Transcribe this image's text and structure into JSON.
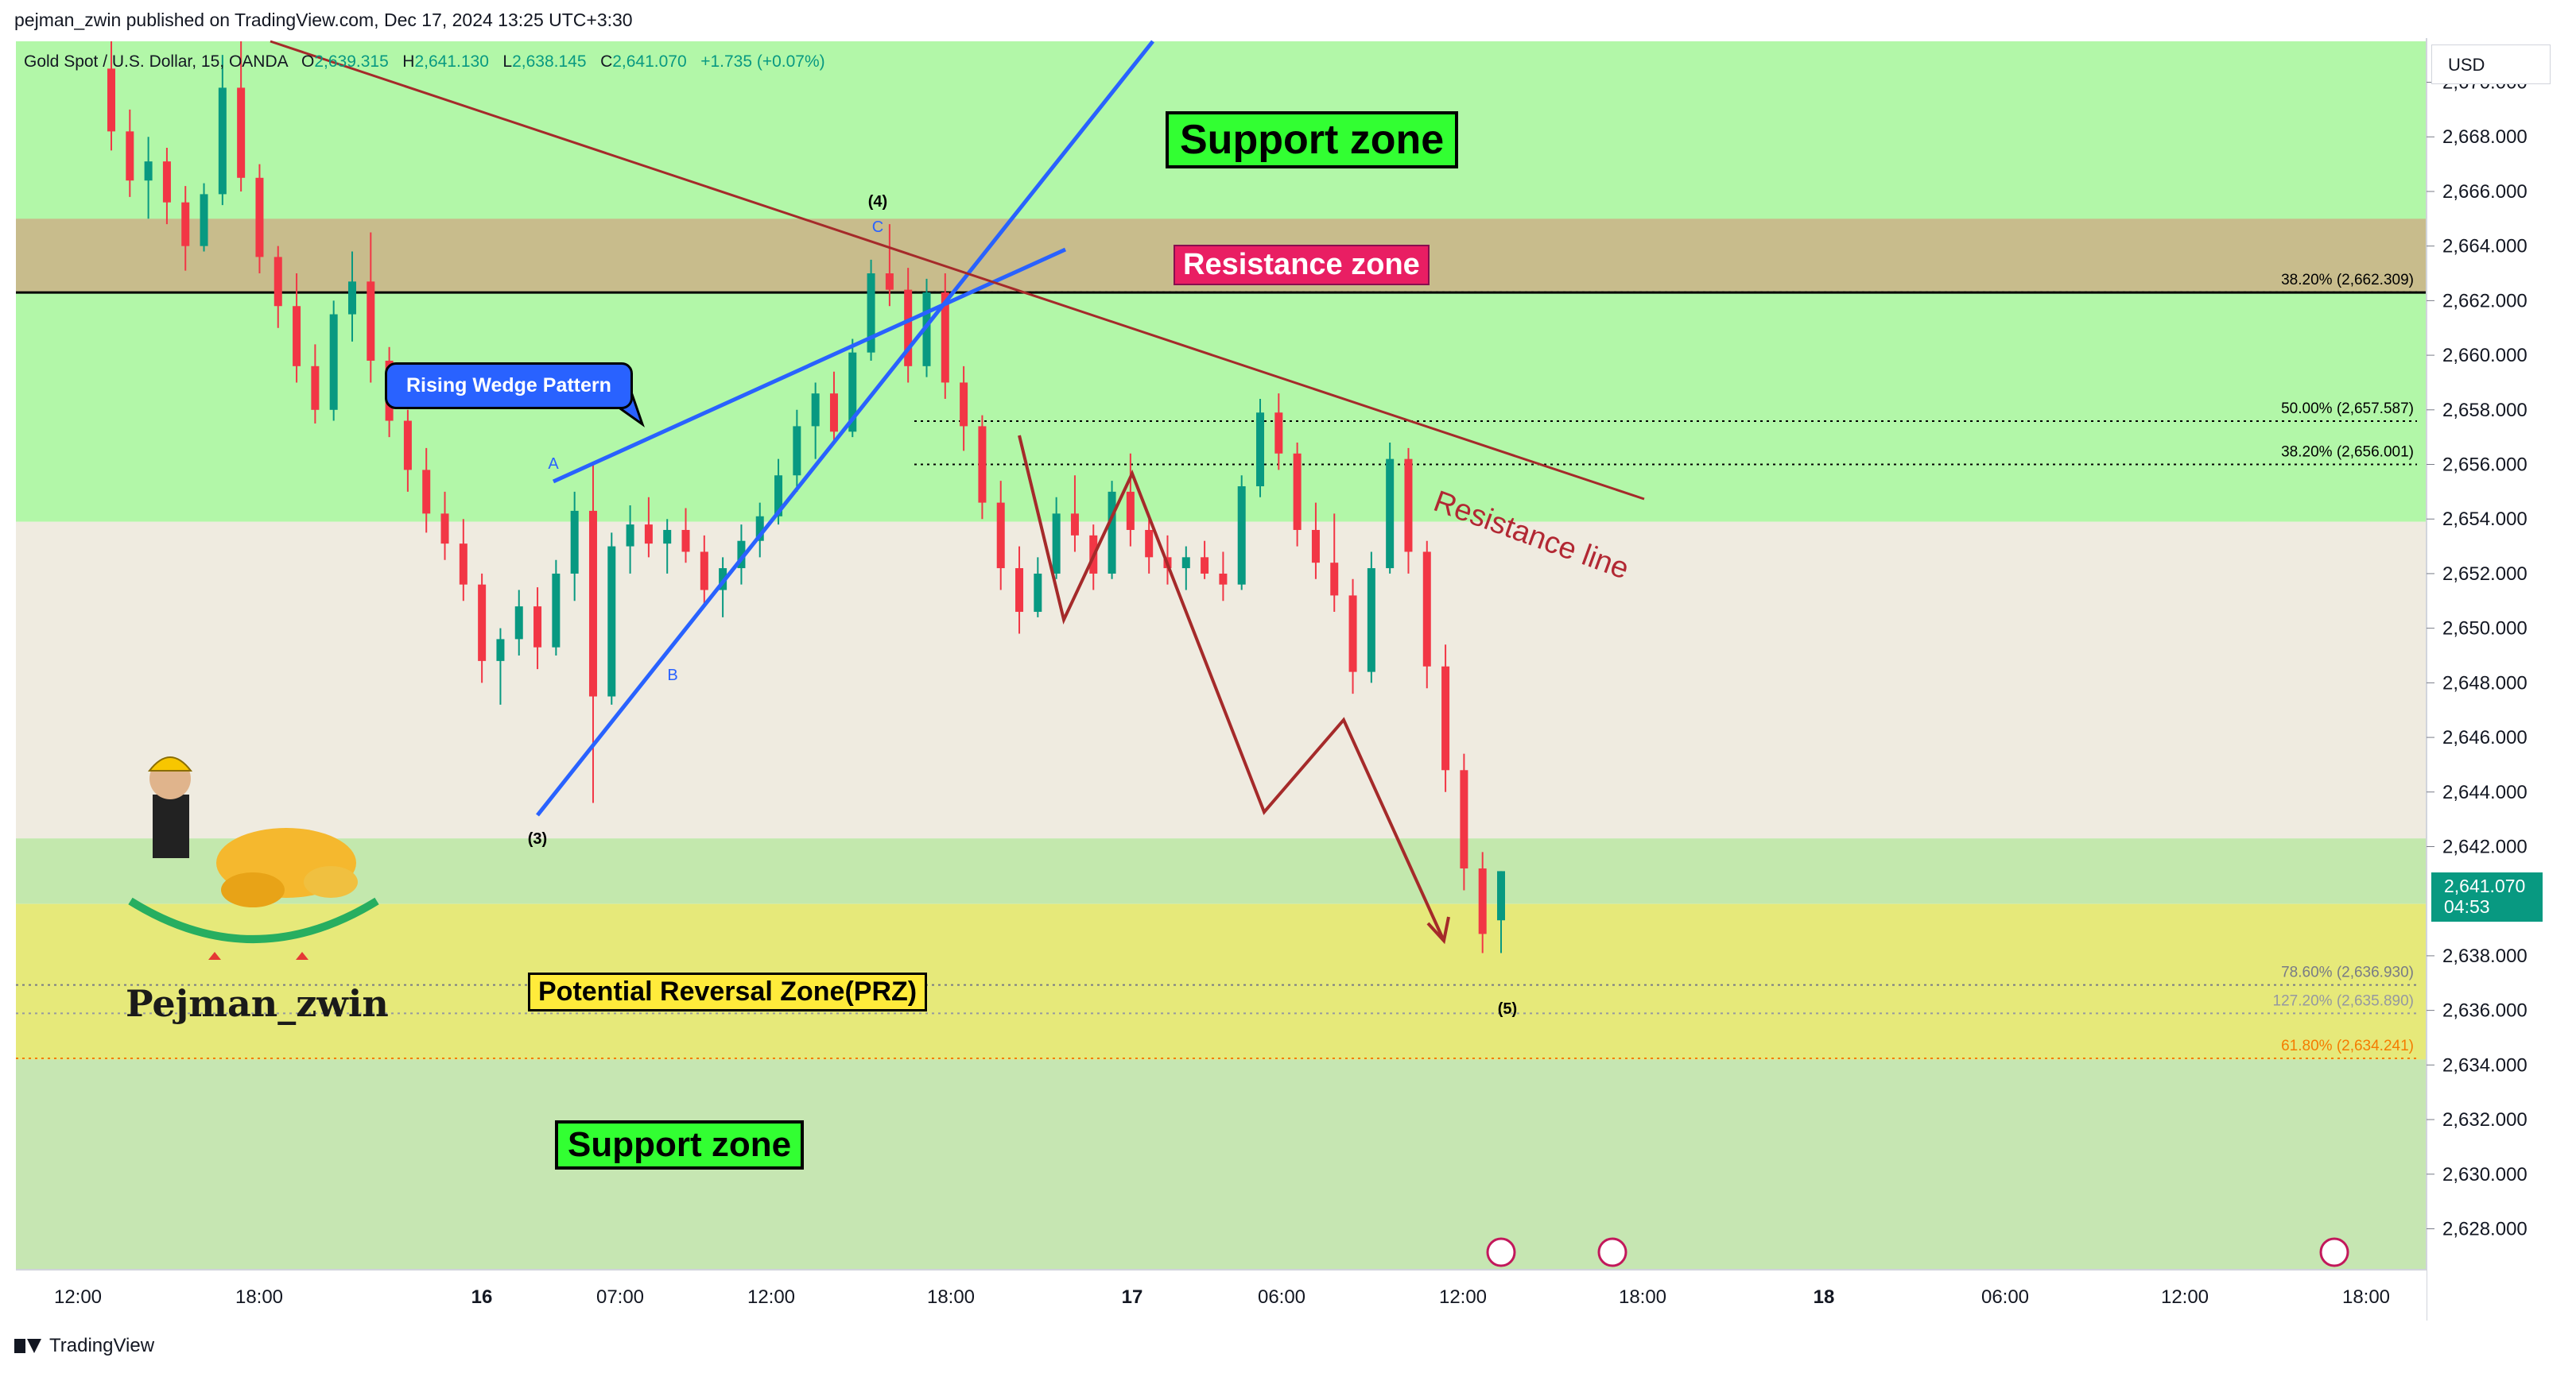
{
  "header": {
    "published_by": "pejman_zwin published on TradingView.com, Dec 17, 2024 13:25 UTC+3:30"
  },
  "legend": {
    "symbol": "Gold Spot / U.S. Dollar, 15, OANDA",
    "o_label": "O",
    "open": "2,639.315",
    "h_label": "H",
    "high": "2,641.130",
    "l_label": "L",
    "low": "2,638.145",
    "c_label": "C",
    "close": "2,641.070",
    "change": "+1.735 (+0.07%)"
  },
  "price_scale": {
    "currency": "USD",
    "current_price": "2,641.070",
    "countdown": "04:53",
    "ticks": [
      "2,670.000",
      "2,668.000",
      "2,666.000",
      "2,664.000",
      "2,662.000",
      "2,660.000",
      "2,658.000",
      "2,656.000",
      "2,654.000",
      "2,652.000",
      "2,650.000",
      "2,648.000",
      "2,646.000",
      "2,644.000",
      "2,642.000",
      "2,638.000",
      "2,636.000",
      "2,634.000",
      "2,632.000",
      "2,630.000",
      "2,628.000"
    ]
  },
  "time_axis": {
    "ticks": [
      {
        "label": "12:00"
      },
      {
        "label": "18:00"
      },
      {
        "label": "16"
      },
      {
        "label": "07:00"
      },
      {
        "label": "12:00"
      },
      {
        "label": "18:00"
      },
      {
        "label": "17"
      },
      {
        "label": "06:00"
      },
      {
        "label": "12:00"
      },
      {
        "label": "18:00"
      },
      {
        "label": "18"
      },
      {
        "label": "06:00"
      },
      {
        "label": "12:00"
      },
      {
        "label": "18:00"
      }
    ]
  },
  "annotations": {
    "support_top": "Support zone",
    "support_bottom": "Support zone",
    "resistance_zone": "Resistance zone",
    "prz": "Potential Reversal Zone(PRZ)",
    "rising_wedge": "Rising Wedge Pattern",
    "resistance_line": "Resistance line",
    "brand": "Pejman_zwin",
    "wave_3": "(3)",
    "wave_4": "(4)",
    "wave_5": "(5)",
    "point_a": "A",
    "point_b": "B",
    "point_c": "C"
  },
  "fib_levels": [
    {
      "label": "38.20% (2,662.309)",
      "price": 2662.309,
      "color": "#000000"
    },
    {
      "label": "50.00% (2,657.587)",
      "price": 2657.587,
      "color": "#000000"
    },
    {
      "label": "38.20% (2,656.001)",
      "price": 2656.001,
      "color": "#000000"
    },
    {
      "label": "78.60% (2,636.930)",
      "price": 2636.93,
      "color": "#787b86"
    },
    {
      "label": "127.20% (2,635.890)",
      "price": 2635.89,
      "color": "#9598a1"
    },
    {
      "label": "61.80% (2,634.241)",
      "price": 2634.241,
      "color": "#f57c00"
    }
  ],
  "footer": {
    "brand": "TradingView"
  },
  "chart_data": {
    "type": "candlestick",
    "title": "",
    "xlabel": "",
    "ylabel": "",
    "ylim": [
      2626.5,
      2671.5
    ],
    "grid": false,
    "zones": [
      {
        "name": "Support zone",
        "from": 2653.9,
        "to": 2671.5,
        "color": "#b2f7a8"
      },
      {
        "name": "Resistance zone",
        "from": 2662.3,
        "to": 2665.0,
        "color": "#c8bc8c"
      },
      {
        "name": "neutral",
        "from": 2642.3,
        "to": 2653.9,
        "color": "#efebe0"
      },
      {
        "name": "lower green",
        "from": 2639.9,
        "to": 2642.3,
        "color": "#c3e8ad"
      },
      {
        "name": "Potential Reversal Zone(PRZ)",
        "from": 2634.2,
        "to": 2639.9,
        "color": "#e6e97a"
      },
      {
        "name": "Support zone",
        "from": 2626.5,
        "to": 2634.2,
        "color": "#c6e6b2"
      }
    ],
    "horizontal_line": 2662.3,
    "current_price": 2641.07,
    "candles_ohlc": [
      [
        2670.5,
        2671.5,
        2667.5,
        2668.2
      ],
      [
        2668.2,
        2669.0,
        2665.8,
        2666.4
      ],
      [
        2666.4,
        2668.0,
        2665.0,
        2667.1
      ],
      [
        2667.1,
        2667.6,
        2664.8,
        2665.6
      ],
      [
        2665.6,
        2666.2,
        2663.1,
        2664.0
      ],
      [
        2664.0,
        2666.3,
        2663.8,
        2665.9
      ],
      [
        2665.9,
        2671.0,
        2665.5,
        2669.8
      ],
      [
        2669.8,
        2671.5,
        2666.0,
        2666.5
      ],
      [
        2666.5,
        2667.0,
        2663.0,
        2663.6
      ],
      [
        2663.6,
        2664.0,
        2661.0,
        2661.8
      ],
      [
        2661.8,
        2663.0,
        2659.0,
        2659.6
      ],
      [
        2659.6,
        2660.4,
        2657.5,
        2658.0
      ],
      [
        2658.0,
        2662.0,
        2657.6,
        2661.5
      ],
      [
        2661.5,
        2663.8,
        2660.5,
        2662.7
      ],
      [
        2662.7,
        2664.5,
        2659.0,
        2659.8
      ],
      [
        2659.8,
        2660.3,
        2657.0,
        2657.6
      ],
      [
        2657.6,
        2658.0,
        2655.0,
        2655.8
      ],
      [
        2655.8,
        2656.6,
        2653.5,
        2654.2
      ],
      [
        2654.2,
        2655.0,
        2652.5,
        2653.1
      ],
      [
        2653.1,
        2654.0,
        2651.0,
        2651.6
      ],
      [
        2651.6,
        2652.0,
        2648.0,
        2648.8
      ],
      [
        2648.8,
        2650.0,
        2647.2,
        2649.6
      ],
      [
        2649.6,
        2651.4,
        2649.0,
        2650.8
      ],
      [
        2650.8,
        2651.5,
        2648.5,
        2649.3
      ],
      [
        2649.3,
        2652.5,
        2649.0,
        2652.0
      ],
      [
        2652.0,
        2655.0,
        2651.0,
        2654.3
      ],
      [
        2654.3,
        2656.0,
        2643.6,
        2647.5
      ],
      [
        2647.5,
        2653.5,
        2647.2,
        2653.0
      ],
      [
        2653.0,
        2654.5,
        2652.0,
        2653.8
      ],
      [
        2653.8,
        2654.8,
        2652.6,
        2653.1
      ],
      [
        2653.1,
        2654.0,
        2652.0,
        2653.6
      ],
      [
        2653.6,
        2654.4,
        2652.4,
        2652.8
      ],
      [
        2652.8,
        2653.4,
        2650.8,
        2651.4
      ],
      [
        2651.4,
        2652.6,
        2650.4,
        2652.2
      ],
      [
        2652.2,
        2653.8,
        2651.6,
        2653.2
      ],
      [
        2653.2,
        2654.6,
        2652.6,
        2654.1
      ],
      [
        2654.1,
        2656.2,
        2653.8,
        2655.6
      ],
      [
        2655.6,
        2658.0,
        2655.0,
        2657.4
      ],
      [
        2657.4,
        2659.0,
        2656.2,
        2658.6
      ],
      [
        2658.6,
        2659.4,
        2656.8,
        2657.2
      ],
      [
        2657.2,
        2660.6,
        2657.0,
        2660.1
      ],
      [
        2660.1,
        2663.5,
        2659.8,
        2663.0
      ],
      [
        2663.0,
        2664.8,
        2661.8,
        2662.4
      ],
      [
        2662.4,
        2663.2,
        2659.0,
        2659.6
      ],
      [
        2659.6,
        2662.8,
        2659.2,
        2662.3
      ],
      [
        2662.3,
        2663.0,
        2658.4,
        2659.0
      ],
      [
        2659.0,
        2659.6,
        2656.5,
        2657.4
      ],
      [
        2657.4,
        2657.8,
        2654.0,
        2654.6
      ],
      [
        2654.6,
        2655.4,
        2651.4,
        2652.2
      ],
      [
        2652.2,
        2653.0,
        2649.8,
        2650.6
      ],
      [
        2650.6,
        2652.6,
        2650.4,
        2652.0
      ],
      [
        2652.0,
        2654.8,
        2651.8,
        2654.2
      ],
      [
        2654.2,
        2655.6,
        2652.8,
        2653.4
      ],
      [
        2653.4,
        2653.8,
        2651.4,
        2652.0
      ],
      [
        2652.0,
        2655.4,
        2651.8,
        2655.0
      ],
      [
        2655.0,
        2656.4,
        2653.0,
        2653.6
      ],
      [
        2653.6,
        2654.0,
        2652.0,
        2652.6
      ],
      [
        2652.6,
        2653.4,
        2651.6,
        2652.2
      ],
      [
        2652.2,
        2653.0,
        2651.4,
        2652.6
      ],
      [
        2652.6,
        2653.2,
        2651.8,
        2652.0
      ],
      [
        2652.0,
        2652.8,
        2651.0,
        2651.6
      ],
      [
        2651.6,
        2655.6,
        2651.4,
        2655.2
      ],
      [
        2655.2,
        2658.4,
        2654.8,
        2657.9
      ],
      [
        2657.9,
        2658.6,
        2655.8,
        2656.4
      ],
      [
        2656.4,
        2656.8,
        2653.0,
        2653.6
      ],
      [
        2653.6,
        2654.6,
        2651.8,
        2652.4
      ],
      [
        2652.4,
        2654.2,
        2650.6,
        2651.2
      ],
      [
        2651.2,
        2651.8,
        2647.6,
        2648.4
      ],
      [
        2648.4,
        2652.8,
        2648.0,
        2652.2
      ],
      [
        2652.2,
        2656.8,
        2652.0,
        2656.2
      ],
      [
        2656.2,
        2656.6,
        2652.0,
        2652.8
      ],
      [
        2652.8,
        2653.2,
        2647.8,
        2648.6
      ],
      [
        2648.6,
        2649.4,
        2644.0,
        2644.8
      ],
      [
        2644.8,
        2645.4,
        2640.4,
        2641.2
      ],
      [
        2641.2,
        2641.8,
        2638.1,
        2638.8
      ],
      [
        2639.3,
        2641.1,
        2638.1,
        2641.1
      ]
    ]
  }
}
